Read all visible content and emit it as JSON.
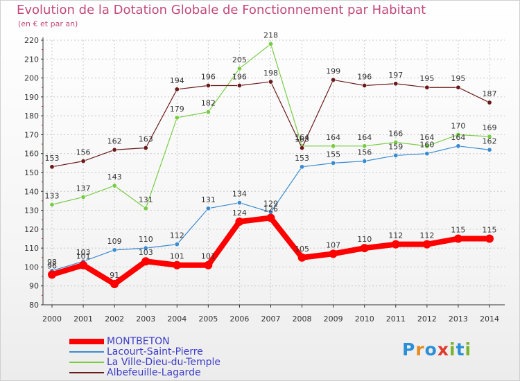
{
  "title": "Evolution de la Dotation Globale de Fonctionnement par Habitant",
  "subtitle": "(en € et par an)",
  "logo": {
    "text": "Proxiti",
    "letters": [
      "P",
      "r",
      "o",
      "x",
      "i",
      "t",
      "i"
    ],
    "colors": [
      "#2a8fd6",
      "#e48a1e",
      "#2a8fd6",
      "#e0392b",
      "#7ab32e",
      "#2a8fd6",
      "#7ab32e"
    ]
  },
  "chart_data": {
    "type": "line",
    "x": [
      "2000",
      "2001",
      "2002",
      "2003",
      "2004",
      "2005",
      "2006",
      "2007",
      "2008",
      "2009",
      "2010",
      "2011",
      "2012",
      "2013",
      "2014"
    ],
    "ylim": [
      80,
      220
    ],
    "yticks": [
      80,
      90,
      100,
      110,
      120,
      130,
      140,
      150,
      160,
      170,
      180,
      190,
      200,
      210,
      220
    ],
    "grid": true,
    "legend_position": "bottom-left",
    "series": [
      {
        "name": "MONTBETON",
        "color": "#ff0000",
        "emphasis": true,
        "values": [
          96,
          101,
          91,
          103,
          101,
          101,
          124,
          126,
          105,
          107,
          110,
          112,
          112,
          115,
          115
        ]
      },
      {
        "name": "Lacourt-Saint-Pierre",
        "color": "#3b8ad0",
        "emphasis": false,
        "values": [
          98,
          103,
          109,
          110,
          112,
          131,
          134,
          129,
          153,
          155,
          156,
          159,
          160,
          164,
          162
        ]
      },
      {
        "name": "La Ville-Dieu-du-Temple",
        "color": "#77cc44",
        "emphasis": false,
        "values": [
          133,
          137,
          143,
          131,
          179,
          182,
          205,
          218,
          164,
          164,
          164,
          166,
          164,
          170,
          169
        ]
      },
      {
        "name": "Albefeuille-Lagarde",
        "color": "#6b1a1a",
        "emphasis": false,
        "values": [
          153,
          156,
          162,
          163,
          194,
          196,
          196,
          198,
          163,
          199,
          196,
          197,
          195,
          195,
          187
        ]
      }
    ]
  }
}
